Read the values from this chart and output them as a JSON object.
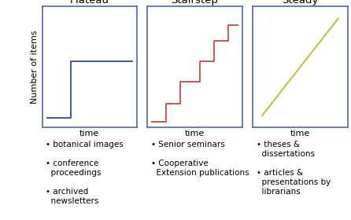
{
  "title_plateau": "Plateau",
  "title_stairstep": "Stairstep",
  "title_steady": "Steady",
  "xlabel": "time",
  "ylabel": "Number of items",
  "plateau_color": "#4455aa",
  "stairstep_color": "#cc5555",
  "steady_color": "#bbbb44",
  "box_border_color": "#5566aa",
  "box_bg": "white",
  "title_fontsize": 9.5,
  "label_fontsize": 8,
  "bullet_fontsize": 7.5,
  "bullets_col1": [
    "• botanical images",
    "• conference\n  proceedings",
    "• archived\n  newsletters"
  ],
  "bullets_col2": [
    "• Senior seminars",
    "• Cooperative\n  Extension publications"
  ],
  "bullets_col3": [
    "• theses &\n  dissertations",
    "• articles &\n  presentations by\n  librarians"
  ]
}
